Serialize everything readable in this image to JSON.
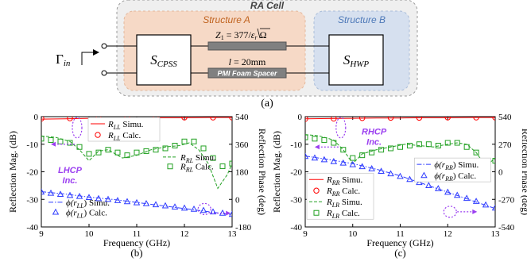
{
  "diagram": {
    "ra_cell": "RA Cell",
    "structure_a": "Structure A",
    "structure_b": "Structure B",
    "input_gamma": "Γ",
    "input_sub": "in",
    "cpss_main": "S",
    "cpss_sub": "CPSS",
    "hwp_main": "S",
    "hwp_sub": "HWP",
    "z1_prefix": "Z",
    "z1_sub": "1",
    "z1_eq": " = 377/",
    "z1_sqrt": "ε",
    "z1_sqrt_sub": "r",
    "z1_unit": " Ω",
    "l_label": "l",
    "l_value": " = 20mm",
    "foam_label": "PMI Foam Spacer",
    "caption_a": "(a)"
  },
  "colors": {
    "structure_a_fill": "#f6d9c6",
    "structure_b_fill": "#d6e0ef",
    "structure_a_text": "#c0631f",
    "structure_b_text": "#4e79b8",
    "line_gray": "#808080",
    "red": "#ff0000",
    "green": "#22a022",
    "blue": "#2f3cff",
    "purple": "#9b3ff0"
  },
  "chart_data": [
    {
      "type": "line",
      "caption": "(b)",
      "xlabel": "Frequency (GHz)",
      "ylabel": "Reflection Mag. (dB)",
      "y2label": "Reflection Phase (deg)",
      "xlim": [
        9,
        13
      ],
      "ylim": [
        -40,
        0
      ],
      "y2lim": [
        -180,
        540
      ],
      "xticks": [
        "9",
        "10",
        "11",
        "12",
        "13"
      ],
      "yticks": [
        "0",
        "-10",
        "-20",
        "-30",
        "-40"
      ],
      "y2ticks": [
        "540",
        "360",
        "180",
        "0",
        "-180"
      ],
      "annotation": [
        "LHCP",
        "Inc."
      ],
      "legend_top": [
        {
          "name_main": "R",
          "name_sub": "LL",
          "suffix": " Simu."
        },
        {
          "name_main": "R",
          "name_sub": "LL",
          "suffix": " Calc."
        }
      ],
      "legend_mid": [
        {
          "name_main": "R",
          "name_sub": "RL",
          "suffix": " Simu."
        },
        {
          "name_main": "R",
          "name_sub": "RL",
          "suffix": " Calc."
        }
      ],
      "legend_bottom": [
        {
          "name_main": "ϕ(r",
          "name_sub": "LL",
          "suffix": ") Simu."
        },
        {
          "name_main": "ϕ(r",
          "name_sub": "LL",
          "suffix": ") Calc."
        }
      ],
      "series": [
        {
          "name": "R_LL Simu.",
          "axis": "left",
          "style": "solid",
          "color": "red",
          "x": [
            9.0,
            9.5,
            10.0,
            10.5,
            11.0,
            11.5,
            12.0,
            12.5,
            13.0
          ],
          "y": [
            -0.9,
            -0.8,
            -0.6,
            -0.5,
            -0.5,
            -0.4,
            -0.4,
            -0.3,
            -0.3
          ]
        },
        {
          "name": "R_LL Calc.",
          "axis": "left",
          "style": "circle",
          "color": "red",
          "x": [
            9.0,
            9.6,
            10.2,
            10.8,
            11.4,
            12.0,
            12.6,
            13.0
          ],
          "y": [
            -0.7,
            -0.6,
            -0.5,
            -0.4,
            -0.4,
            -0.3,
            -0.3,
            -0.3
          ]
        },
        {
          "name": "R_RL Simu.",
          "axis": "left",
          "style": "dash",
          "color": "green",
          "x": [
            9.0,
            9.3,
            9.6,
            9.8,
            10.0,
            10.2,
            10.4,
            10.7,
            11.0,
            11.3,
            11.6,
            11.9,
            12.1,
            12.3,
            12.5,
            12.7,
            12.9,
            13.0
          ],
          "y": [
            -7.0,
            -7.5,
            -9.0,
            -12.0,
            -16.0,
            -12.5,
            -12.0,
            -15.0,
            -14.0,
            -12.0,
            -11.0,
            -10.5,
            -9.5,
            -12.0,
            -17.0,
            -26.0,
            -21.0,
            -17.0
          ]
        },
        {
          "name": "R_RL Calc.",
          "axis": "left",
          "style": "square",
          "color": "green",
          "x": [
            9.0,
            9.2,
            9.4,
            9.6,
            9.8,
            10.0,
            10.2,
            10.4,
            10.6,
            10.8,
            11.0,
            11.2,
            11.4,
            11.6,
            11.8,
            12.0,
            12.2,
            12.4,
            12.6,
            12.8,
            13.0
          ],
          "y": [
            -8.0,
            -8.5,
            -9.0,
            -9.5,
            -11.0,
            -13.5,
            -13.0,
            -12.0,
            -13.0,
            -14.0,
            -13.0,
            -12.5,
            -12.0,
            -11.5,
            -10.5,
            -9.0,
            -9.0,
            -11.5,
            -15.0,
            -18.0,
            -17.0
          ]
        },
        {
          "name": "ϕ(r_LL) Simu.",
          "axis": "right",
          "style": "dashdot",
          "color": "blue",
          "x": [
            9.0,
            9.5,
            10.0,
            10.5,
            11.0,
            11.5,
            12.0,
            12.5,
            13.0
          ],
          "y": [
            50,
            35,
            15,
            0,
            -20,
            -40,
            -60,
            -80,
            -100
          ]
        },
        {
          "name": "ϕ(r_LL) Calc.",
          "axis": "right",
          "style": "triangle",
          "color": "blue",
          "x": [
            9.0,
            9.2,
            9.4,
            9.6,
            9.8,
            10.0,
            10.2,
            10.4,
            10.6,
            10.8,
            11.0,
            11.2,
            11.4,
            11.6,
            11.8,
            12.0,
            12.2,
            12.4,
            12.6,
            12.8,
            13.0
          ],
          "y": [
            48,
            40,
            33,
            26,
            19,
            12,
            5,
            0,
            -8,
            -15,
            -22,
            -28,
            -35,
            -42,
            -50,
            -57,
            -64,
            -72,
            -82,
            -90,
            -98
          ]
        }
      ]
    },
    {
      "type": "line",
      "caption": "(c)",
      "xlabel": "Frequency (GHz)",
      "ylabel": "Reflection Mag. (dB)",
      "y2label": "Reflection Phase (deg)",
      "xlim": [
        9,
        13
      ],
      "ylim": [
        -40,
        0
      ],
      "y2lim": [
        -540,
        540
      ],
      "xticks": [
        "9",
        "10",
        "11",
        "12",
        "13"
      ],
      "yticks": [
        "0",
        "-10",
        "-20",
        "-30",
        "-40"
      ],
      "y2ticks": [
        "540",
        "270",
        "0",
        "-270",
        "-540"
      ],
      "annotation": [
        "RHCP",
        "Inc."
      ],
      "legend_left": [
        {
          "name_main": "R",
          "name_sub": "RR",
          "suffix": " Simu."
        },
        {
          "name_main": "R",
          "name_sub": "RR",
          "suffix": " Calc."
        },
        {
          "name_main": "R",
          "name_sub": "LR",
          "suffix": " Simu."
        },
        {
          "name_main": "R",
          "name_sub": "LR",
          "suffix": " Calc."
        }
      ],
      "legend_right": [
        {
          "name_main": "ϕ(r",
          "name_sub": "RR",
          "suffix": ") Simu."
        },
        {
          "name_main": "ϕ(r",
          "name_sub": "RR",
          "suffix": ") Calc."
        }
      ],
      "series": [
        {
          "name": "R_RR Simu.",
          "axis": "left",
          "style": "solid",
          "color": "red",
          "x": [
            9.0,
            9.5,
            10.0,
            10.5,
            11.0,
            11.5,
            12.0,
            12.5,
            13.0
          ],
          "y": [
            -0.8,
            -0.7,
            -0.6,
            -0.5,
            -0.5,
            -0.4,
            -0.4,
            -0.3,
            -0.3
          ]
        },
        {
          "name": "R_RR Calc.",
          "axis": "left",
          "style": "circle",
          "color": "red",
          "x": [
            9.0,
            9.6,
            10.2,
            10.8,
            11.4,
            12.0,
            12.6,
            13.0
          ],
          "y": [
            -0.8,
            -0.7,
            -0.5,
            -0.4,
            -0.4,
            -0.3,
            -0.3,
            -0.3
          ]
        },
        {
          "name": "R_LR Simu.",
          "axis": "left",
          "style": "dash",
          "color": "green",
          "x": [
            9.0,
            9.3,
            9.6,
            9.8,
            10.0,
            10.2,
            10.5,
            10.8,
            11.1,
            11.4,
            11.7,
            12.0,
            12.2,
            12.4,
            12.6,
            12.8,
            13.0
          ],
          "y": [
            -6.5,
            -7.0,
            -8.5,
            -12.0,
            -17.0,
            -13.5,
            -12.0,
            -11.0,
            -10.0,
            -10.5,
            -11.0,
            -10.0,
            -9.5,
            -10.0,
            -13.0,
            -18.0,
            -15.0
          ]
        },
        {
          "name": "R_LR Calc.",
          "axis": "left",
          "style": "square",
          "color": "green",
          "x": [
            9.0,
            9.2,
            9.4,
            9.6,
            9.8,
            10.0,
            10.2,
            10.4,
            10.6,
            10.8,
            11.0,
            11.2,
            11.4,
            11.6,
            11.8,
            12.0,
            12.2,
            12.4,
            12.6,
            12.8,
            13.0
          ],
          "y": [
            -7.5,
            -8.0,
            -8.5,
            -9.5,
            -12.0,
            -15.0,
            -14.0,
            -13.0,
            -12.0,
            -11.5,
            -11.0,
            -10.5,
            -10.0,
            -10.0,
            -10.5,
            -9.5,
            -9.5,
            -11.0,
            -13.0,
            -17.0,
            -16.0
          ]
        },
        {
          "name": "ϕ(r_RR) Simu.",
          "axis": "right",
          "style": "dashdot",
          "color": "blue",
          "x": [
            9.0,
            9.5,
            10.0,
            10.5,
            11.0,
            11.5,
            12.0,
            12.5,
            13.0
          ],
          "y": [
            155,
            120,
            80,
            25,
            -40,
            -120,
            -200,
            -280,
            -360
          ]
        },
        {
          "name": "ϕ(r_RR) Calc.",
          "axis": "right",
          "style": "triangle",
          "color": "blue",
          "x": [
            9.0,
            9.2,
            9.4,
            9.6,
            9.8,
            10.0,
            10.2,
            10.4,
            10.6,
            10.8,
            11.0,
            11.2,
            11.4,
            11.6,
            11.8,
            12.0,
            12.2,
            12.4,
            12.6,
            12.8,
            13.0
          ],
          "y": [
            150,
            135,
            118,
            100,
            85,
            70,
            50,
            30,
            5,
            -20,
            -45,
            -75,
            -105,
            -135,
            -165,
            -200,
            -230,
            -260,
            -290,
            -325,
            -355
          ]
        }
      ]
    }
  ]
}
